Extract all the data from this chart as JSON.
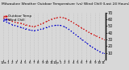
{
  "title": "Milwaukee Weather Outdoor Temperature (vs) Wind Chill (Last 24 Hours)",
  "temp": [
    62,
    60,
    57,
    55,
    54,
    52,
    50,
    49,
    51,
    54,
    57,
    60,
    62,
    63,
    62,
    59,
    55,
    51,
    47,
    43,
    39,
    36,
    33,
    30
  ],
  "wind_chill": [
    58,
    55,
    52,
    50,
    48,
    46,
    44,
    43,
    44,
    46,
    48,
    50,
    51,
    51,
    49,
    45,
    40,
    35,
    30,
    25,
    20,
    16,
    12,
    9
  ],
  "temp_color": "#cc0000",
  "wind_color": "#0000cc",
  "bg_color": "#d8d8d8",
  "plot_bg": "#d8d8d8",
  "ylim_min": 0,
  "ylim_max": 70,
  "yticks": [
    10,
    20,
    30,
    40,
    50,
    60,
    70
  ],
  "ytick_labels": [
    "10",
    "20",
    "30",
    "40",
    "50",
    "60",
    "70"
  ],
  "xlabel_fontsize": 3.0,
  "ylabel_fontsize": 3.5,
  "title_fontsize": 3.2,
  "legend_fontsize": 3.0,
  "hours": [
    "12a",
    "1",
    "2",
    "3",
    "4",
    "5",
    "6",
    "7",
    "8",
    "9",
    "10",
    "11",
    "12p",
    "1",
    "2",
    "3",
    "4",
    "5",
    "6",
    "7",
    "8",
    "9",
    "10",
    "11"
  ],
  "legend_labels": [
    "Outdoor Temp",
    "Wind Chill"
  ],
  "grid_color": "#aaaaaa",
  "spine_color": "#000000"
}
